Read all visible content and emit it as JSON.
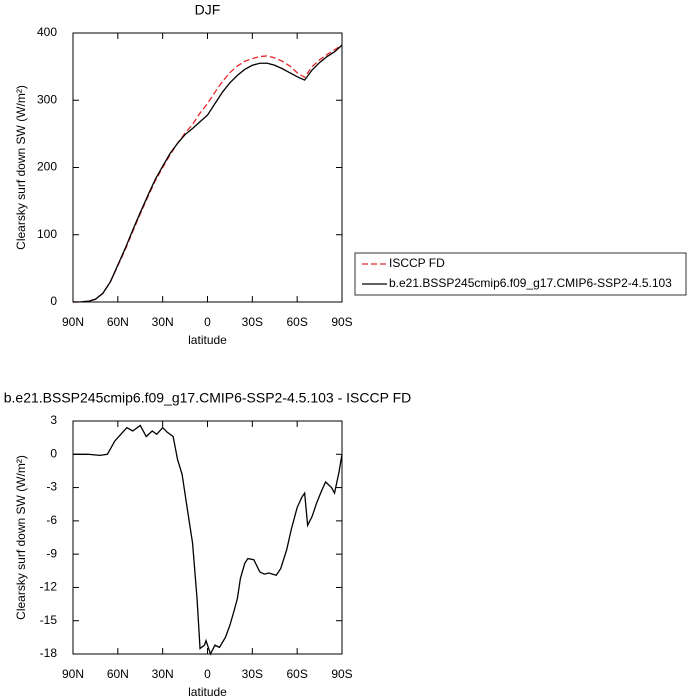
{
  "chart_data": [
    {
      "type": "line",
      "title": "DJF",
      "xlabel": "latitude",
      "ylabel": "Clearsky surf down SW (W/m²)",
      "x": [
        90,
        85,
        80,
        75,
        70,
        65,
        60,
        55,
        50,
        45,
        40,
        35,
        30,
        25,
        20,
        15,
        10,
        5,
        0,
        -5,
        -10,
        -15,
        -20,
        -25,
        -30,
        -35,
        -40,
        -45,
        -50,
        -55,
        -60,
        -65,
        -70,
        -75,
        -80,
        -85,
        -90
      ],
      "series": [
        {
          "name": "ISCCP FD",
          "color": "#e8262a",
          "dash": true,
          "values": [
            0,
            0.2,
            1,
            4,
            13,
            30,
            54,
            78,
            105,
            131,
            156,
            180,
            200,
            219,
            236,
            251,
            264,
            281,
            295,
            312,
            328,
            341,
            351,
            358,
            362,
            365,
            366,
            363,
            358,
            351,
            341,
            334,
            350,
            360,
            368,
            375,
            382
          ]
        },
        {
          "name": "b.e21.BSSP245cmip6.f09_g17.CMIP6-SSP2-4.5.103",
          "color": "#000000",
          "dash": false,
          "values": [
            0,
            0.2,
            1,
            4,
            13,
            30,
            55,
            80,
            107,
            133,
            158,
            182,
            202,
            221,
            236,
            249,
            258,
            268,
            278,
            295,
            312,
            326,
            337,
            346,
            352,
            355,
            355,
            352,
            347,
            341,
            335,
            330,
            345,
            356,
            365,
            372,
            382
          ]
        }
      ],
      "xlim": [
        90,
        -90
      ],
      "ylim": [
        0,
        400
      ],
      "xticks": [
        {
          "value": 90,
          "label": "90N"
        },
        {
          "value": 60,
          "label": "60N"
        },
        {
          "value": 30,
          "label": "30N"
        },
        0,
        {
          "value": -30,
          "label": "30S"
        },
        {
          "value": -60,
          "label": "60S"
        },
        {
          "value": -90,
          "label": "90S"
        }
      ],
      "yticks": [
        0,
        100,
        200,
        300,
        400
      ],
      "legend": "right"
    },
    {
      "type": "line",
      "title": "b.e21.BSSP245cmip6.f09_g17.CMIP6-SSP2-4.5.103 - ISCCP FD",
      "xlabel": "latitude",
      "ylabel": "Clearsky surf down SW (W/m²)",
      "x": [
        90,
        80,
        72,
        67,
        62,
        54,
        50,
        45,
        41,
        37,
        34,
        30,
        27,
        23,
        20,
        17,
        14,
        10,
        7,
        5,
        2,
        1,
        -2,
        -5,
        -8,
        -12,
        -15,
        -18,
        -20,
        -22,
        -25,
        -27,
        -31,
        -35,
        -38,
        -41,
        -46,
        -49,
        -53,
        -56,
        -60,
        -63,
        -65,
        -67,
        -70,
        -73,
        -76,
        -79,
        -83,
        -85,
        -88,
        -90
      ],
      "series": [
        {
          "name": "b.e21.BSSP245cmip6.f09_g17.CMIP6-SSP2-4.5.103 - ISCCP FD",
          "color": "#000000",
          "dash": false,
          "values": [
            0,
            0,
            -0.1,
            0,
            1.2,
            2.4,
            2.1,
            2.6,
            1.6,
            2.1,
            1.8,
            2.4,
            2.0,
            1.6,
            -0.5,
            -1.8,
            -4.5,
            -8.0,
            -13,
            -17.5,
            -17.2,
            -16.8,
            -18,
            -17.2,
            -17.4,
            -16.5,
            -15.4,
            -14,
            -13,
            -11.2,
            -9.8,
            -9.4,
            -9.5,
            -10.6,
            -10.8,
            -10.7,
            -10.9,
            -10.3,
            -8.6,
            -6.8,
            -4.8,
            -3.9,
            -3.5,
            -6.4,
            -5.6,
            -4.4,
            -3.4,
            -2.5,
            -3.0,
            -3.5,
            -1.6,
            0
          ]
        }
      ],
      "xlim": [
        90,
        -90
      ],
      "ylim": [
        -18,
        3
      ],
      "xticks": [
        {
          "value": 90,
          "label": "90N"
        },
        {
          "value": 60,
          "label": "60N"
        },
        {
          "value": 30,
          "label": "30N"
        },
        0,
        {
          "value": -30,
          "label": "30S"
        },
        {
          "value": -60,
          "label": "60S"
        },
        {
          "value": -90,
          "label": "90S"
        }
      ],
      "yticks": [
        3,
        0,
        -3,
        -6,
        -9,
        -12,
        -15,
        -18
      ]
    }
  ]
}
